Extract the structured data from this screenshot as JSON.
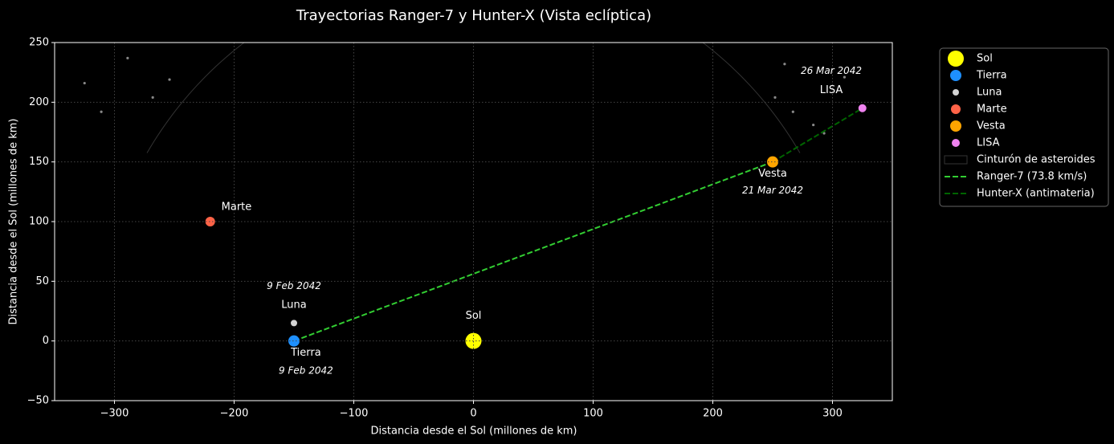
{
  "chart_data": {
    "type": "scatter",
    "title": "Trayectorias Ranger-7 y Hunter-X (Vista eclíptica)",
    "x_label": "Distancia desde el Sol (millones de km)",
    "y_label": "Distancia desde el Sol (millones de km)",
    "xlim": [
      -350,
      350
    ],
    "ylim": [
      -50,
      250
    ],
    "xticks": [
      {
        "value": -300,
        "label": "−300"
      },
      {
        "value": -200,
        "label": "−200"
      },
      {
        "value": -100,
        "label": "−100"
      },
      0,
      100,
      200,
      300
    ],
    "yticks": [
      {
        "value": -50,
        "label": "−50"
      },
      0,
      50,
      100,
      150,
      200,
      250
    ],
    "grid": true,
    "legend": "outside upper right",
    "background": "#000000",
    "series": [
      {
        "name": "Sol",
        "kind": "point",
        "color": "#ffff00",
        "marker_size": 10,
        "x": [
          0
        ],
        "y": [
          0
        ]
      },
      {
        "name": "Tierra",
        "kind": "point",
        "color": "#1e90ff",
        "marker_size": 7,
        "x": [
          -150
        ],
        "y": [
          0
        ]
      },
      {
        "name": "Luna",
        "kind": "point",
        "color": "#d3d3d3",
        "marker_size": 4,
        "x": [
          -150
        ],
        "y": [
          15
        ]
      },
      {
        "name": "Marte",
        "kind": "point",
        "color": "#ff6347",
        "marker_size": 6,
        "x": [
          -220
        ],
        "y": [
          100
        ]
      },
      {
        "name": "Vesta",
        "kind": "point",
        "color": "#ffa500",
        "marker_size": 7,
        "x": [
          250
        ],
        "y": [
          150
        ]
      },
      {
        "name": "LISA",
        "kind": "point",
        "color": "#ee82ee",
        "marker_size": 5,
        "x": [
          325
        ],
        "y": [
          195
        ]
      },
      {
        "name": "Cinturón de asteroides",
        "kind": "belt",
        "color": "#333333",
        "radius": 315,
        "theta": [
          30,
          150
        ]
      },
      {
        "name": "Ranger-7 (73.8 km/s)",
        "kind": "line",
        "color": "#32cd32",
        "x": [
          -150,
          250
        ],
        "y": [
          0,
          150
        ]
      },
      {
        "name": "Hunter-X (antimateria)",
        "kind": "line",
        "color": "#006400",
        "x": [
          250,
          325
        ],
        "y": [
          150,
          195
        ]
      }
    ],
    "asteroids": {
      "color": "#888888",
      "x": [
        -325,
        -311,
        -289,
        -268,
        -254,
        260,
        252,
        267,
        284,
        293,
        310
      ],
      "y": [
        216,
        192,
        237,
        204,
        219,
        232,
        204,
        192,
        181,
        174,
        221
      ]
    },
    "annotations": [
      {
        "text": "Sol",
        "x": 0,
        "y": 21,
        "italic": false
      },
      {
        "text": "Luna",
        "x": -150,
        "y": 30,
        "italic": false
      },
      {
        "text": "Tierra",
        "x": -140,
        "y": -10,
        "italic": false
      },
      {
        "text": "Marte",
        "x": -198,
        "y": 112,
        "italic": false
      },
      {
        "text": "Vesta",
        "x": 250,
        "y": 140,
        "italic": false
      },
      {
        "text": "LISA",
        "x": 299,
        "y": 210,
        "italic": false
      },
      {
        "text": "9 Feb 2042",
        "x": -150,
        "y": 46,
        "italic": true
      },
      {
        "text": "9 Feb 2042",
        "x": -140,
        "y": -25,
        "italic": true
      },
      {
        "text": "21 Mar 2042",
        "x": 250,
        "y": 126,
        "italic": true
      },
      {
        "text": "26 Mar 2042",
        "x": 299,
        "y": 226,
        "italic": true
      }
    ]
  }
}
